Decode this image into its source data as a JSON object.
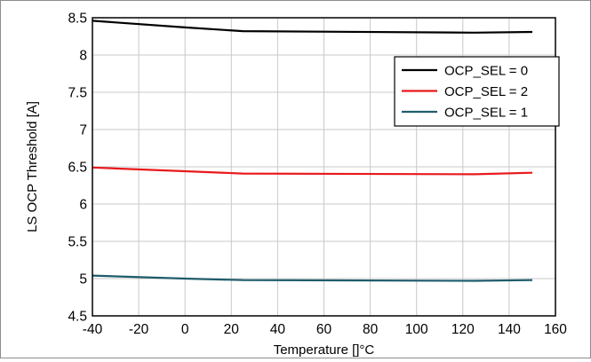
{
  "chart_data": {
    "type": "line",
    "title": "",
    "xlabel": "Temperature []°C",
    "ylabel": "LS OCP Threshold [A]",
    "xlim": [
      -40,
      160
    ],
    "ylim": [
      4.5,
      8.5
    ],
    "x_ticks": [
      "-40",
      "-20",
      "0",
      "20",
      "40",
      "60",
      "80",
      "100",
      "120",
      "140",
      "160"
    ],
    "y_ticks": [
      "4.5",
      "5",
      "5.5",
      "6",
      "6.5",
      "7",
      "7.5",
      "8",
      "8.5"
    ],
    "grid": true,
    "legend_position": "top-right",
    "series": [
      {
        "name": "OCP_SEL = 0",
        "color": "#000000",
        "x": [
          -40,
          0,
          25,
          125,
          150
        ],
        "y": [
          8.46,
          8.37,
          8.32,
          8.3,
          8.31
        ]
      },
      {
        "name": "OCP_SEL = 2",
        "color": "#e8191c",
        "x": [
          -40,
          0,
          25,
          125,
          150
        ],
        "y": [
          6.49,
          6.44,
          6.41,
          6.4,
          6.42
        ]
      },
      {
        "name": "OCP_SEL = 1",
        "color": "#1f5c6b",
        "x": [
          -40,
          0,
          25,
          125,
          150
        ],
        "y": [
          5.04,
          5.0,
          4.98,
          4.97,
          4.98
        ]
      }
    ]
  }
}
